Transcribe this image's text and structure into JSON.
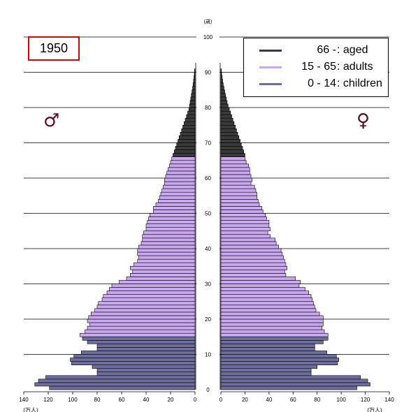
{
  "chart_data": {
    "type": "bar",
    "orientation": "horizontal-pyramid",
    "year_label": "1950",
    "age_axis_unit": "(歳)",
    "population_unit": "(万人)",
    "age_ticks": [
      0,
      10,
      20,
      30,
      40,
      50,
      60,
      70,
      80,
      90,
      100
    ],
    "population_ticks": [
      0,
      20,
      40,
      60,
      80,
      100,
      120,
      140
    ],
    "xlim": [
      0,
      140
    ],
    "ylim": [
      0,
      100
    ],
    "grid": true,
    "legend_position": "top-right",
    "legend": [
      {
        "range": "66 -",
        "label": ": aged",
        "color": "#3a3a3a"
      },
      {
        "range": "15 - 65",
        "label": ": adults",
        "color": "#c9a8f0"
      },
      {
        "range": "0 - 14",
        "label": ": children",
        "color": "#6e6e9c"
      }
    ],
    "male_symbol": "♂",
    "female_symbol": "♀",
    "ages": [
      0,
      1,
      2,
      3,
      4,
      5,
      6,
      7,
      8,
      9,
      10,
      11,
      12,
      13,
      14,
      15,
      16,
      17,
      18,
      19,
      20,
      21,
      22,
      23,
      24,
      25,
      26,
      27,
      28,
      29,
      30,
      31,
      32,
      33,
      34,
      35,
      36,
      37,
      38,
      39,
      40,
      41,
      42,
      43,
      44,
      45,
      46,
      47,
      48,
      49,
      50,
      51,
      52,
      53,
      54,
      55,
      56,
      57,
      58,
      59,
      60,
      61,
      62,
      63,
      64,
      65,
      66,
      67,
      68,
      69,
      70,
      71,
      72,
      73,
      74,
      75,
      76,
      77,
      78,
      79,
      80,
      81,
      82,
      83,
      84,
      85,
      86,
      87,
      88,
      89,
      90
    ],
    "series": [
      {
        "name": "♂",
        "values": [
          119,
          131,
          128,
          122,
          80,
          80,
          84,
          101,
          102,
          99,
          93,
          80,
          80,
          88,
          92,
          94,
          90,
          88,
          86,
          88,
          87,
          85,
          82,
          80,
          79,
          76,
          75,
          72,
          70,
          68,
          62,
          56,
          53,
          51,
          53,
          50,
          47,
          46,
          47,
          47,
          46,
          44,
          43,
          43,
          42,
          40,
          40,
          39,
          38,
          37,
          34,
          34,
          32,
          30,
          29,
          28,
          27,
          26,
          25,
          25,
          24,
          23,
          22,
          21,
          20,
          19,
          18,
          17,
          16,
          15,
          14,
          13,
          12,
          11,
          10,
          9,
          8,
          7,
          6,
          5,
          4.5,
          4,
          3.5,
          3,
          2.5,
          2,
          1.6,
          1.2,
          0.9,
          0.6,
          0.4
        ]
      },
      {
        "name": "♀",
        "values": [
          113,
          124,
          122,
          116,
          75,
          75,
          80,
          97,
          98,
          96,
          88,
          78,
          78,
          85,
          89,
          89,
          86,
          84,
          85,
          85,
          85,
          82,
          79,
          78,
          77,
          76,
          75,
          73,
          70,
          65,
          66,
          62,
          54,
          53,
          55,
          54,
          53,
          52,
          51,
          50,
          48,
          46,
          45,
          41,
          39,
          41,
          40,
          40,
          38,
          37,
          35,
          34,
          32,
          31,
          30,
          30,
          29,
          28,
          25,
          26,
          25,
          24,
          24,
          23,
          21,
          20,
          20,
          19,
          18,
          17,
          16,
          15,
          14,
          13,
          12,
          11,
          10,
          9,
          8,
          7,
          6,
          5.2,
          4.5,
          3.8,
          3.2,
          2.6,
          2,
          1.5,
          1.1,
          0.7,
          0.4
        ]
      }
    ]
  }
}
